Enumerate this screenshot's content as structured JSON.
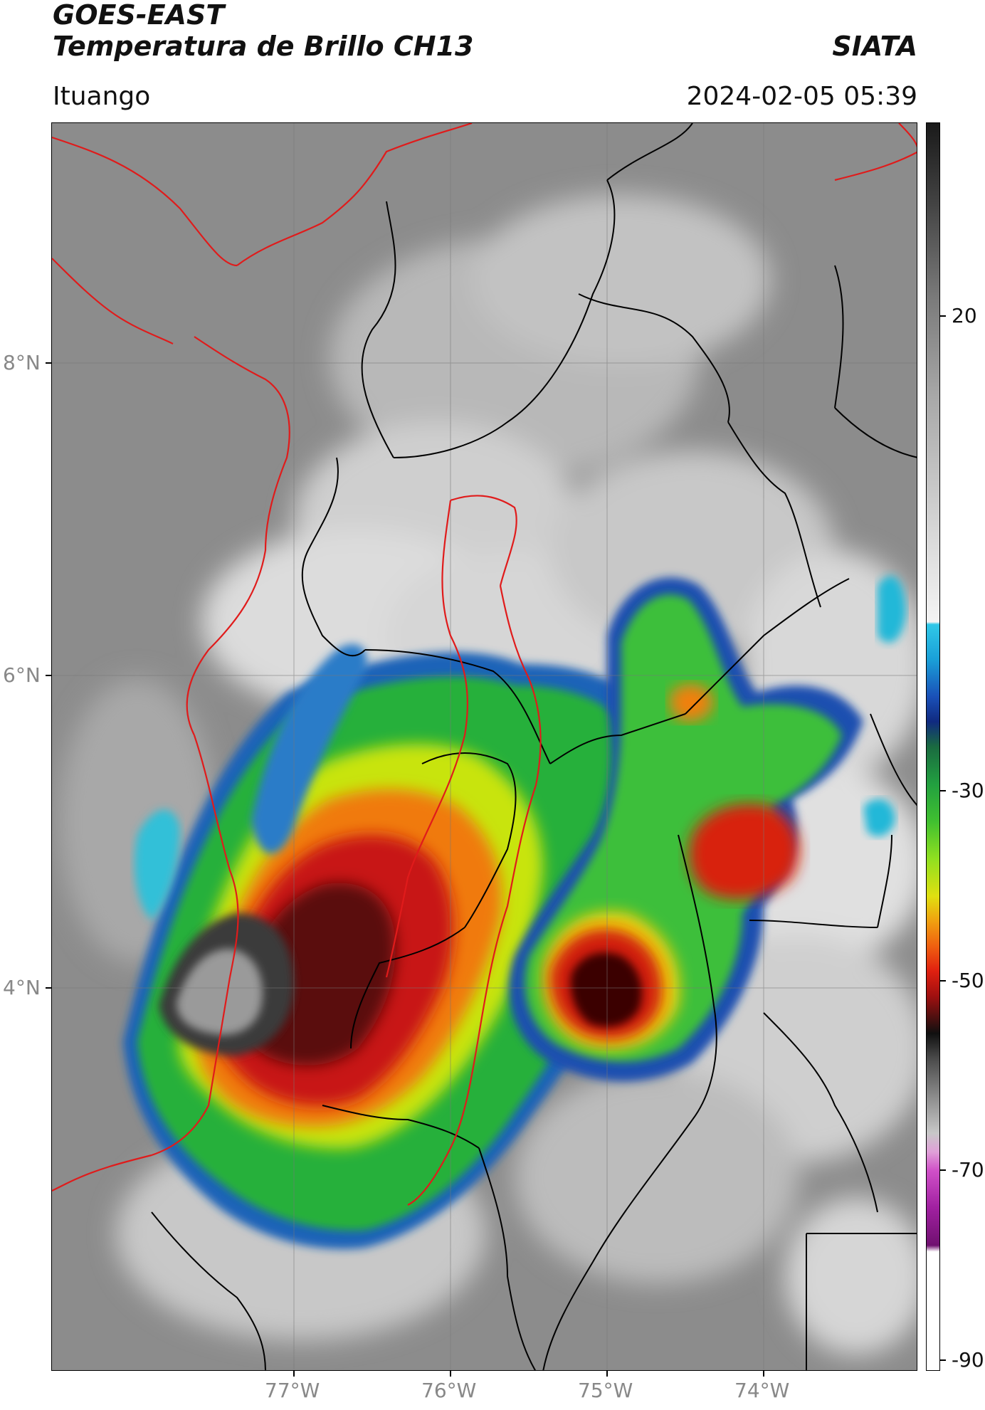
{
  "header": {
    "title_line1": "GOES-EAST",
    "title_line2": "Temperatura de Brillo CH13",
    "brand": "SIATA",
    "location": "Ituango",
    "timestamp": "2024-02-05 05:39"
  },
  "map": {
    "lat_labels": [
      "8°N",
      "6°N",
      "4°N"
    ],
    "lon_labels": [
      "77°W",
      "76°W",
      "75°W",
      "74°W"
    ],
    "colors": {
      "background_gray": "#8a8a8a",
      "cloud_light": "#d6d6d6",
      "border_national": "#e01b1b",
      "border_department": "#000000"
    }
  },
  "colorbar": {
    "ticks": [
      "20",
      "-30",
      "-50",
      "-70",
      "-90"
    ],
    "range": [
      -90,
      30
    ],
    "units_hint": "°C"
  }
}
